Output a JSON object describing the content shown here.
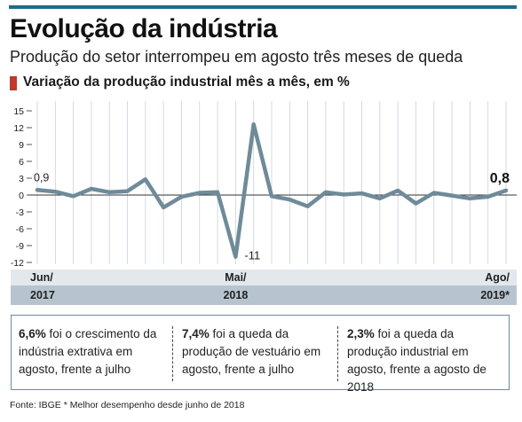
{
  "header": {
    "title": "Evolução da indústria",
    "subtitle": "Produção do setor interrompeu em agosto três meses de queda",
    "section_label": "Variação da produção industrial mês a mês, em %"
  },
  "colors": {
    "accent_bar": "#1f6b8c",
    "marker": "#c0392b",
    "line": "#6f8b99"
  },
  "chart_data": {
    "type": "line",
    "title": "Variação da produção industrial mês a mês, em %",
    "x": [
      "Jun/2017",
      "Jul/2017",
      "Ago/2017",
      "Set/2017",
      "Out/2017",
      "Nov/2017",
      "Dez/2017",
      "Jan/2018",
      "Fev/2018",
      "Mar/2018",
      "Abr/2018",
      "Mai/2018",
      "Jun/2018",
      "Jul/2018",
      "Ago/2018",
      "Set/2018",
      "Out/2018",
      "Nov/2018",
      "Dez/2018",
      "Jan/2019",
      "Fev/2019",
      "Mar/2019",
      "Abr/2019",
      "Mai/2019",
      "Jun/2019",
      "Jul/2019",
      "Ago/2019"
    ],
    "values": [
      0.9,
      0.6,
      -0.2,
      1.1,
      0.5,
      0.7,
      2.8,
      -2.2,
      -0.3,
      0.4,
      0.5,
      -11,
      12.6,
      -0.2,
      -0.8,
      -2.0,
      0.5,
      0.1,
      0.3,
      -0.6,
      0.8,
      -1.5,
      0.4,
      -0.1,
      -0.6,
      -0.3,
      0.8
    ],
    "ylim": [
      -12,
      15
    ],
    "yticks": [
      15,
      12,
      9,
      6,
      3,
      0,
      -3,
      -6,
      -9,
      -12
    ],
    "grid": true,
    "annotations": [
      {
        "x": "Jun/2017",
        "label": "0,9"
      },
      {
        "x": "Mai/2018",
        "label": "-11"
      },
      {
        "x": "Ago/2019",
        "label": "0,8"
      }
    ],
    "x_tick_labels": [
      {
        "index": 0,
        "top": "Jun/",
        "bottom": "2017"
      },
      {
        "index": 11,
        "top": "Mai/",
        "bottom": "2018"
      },
      {
        "index": 26,
        "top": "Ago/",
        "bottom": "2019*"
      }
    ]
  },
  "facts": [
    {
      "highlight": "6,6%",
      "text": " foi o crescimento da indústria extrativa em agosto, frente a julho"
    },
    {
      "highlight": "7,4%",
      "text": " foi a queda da produção de vestuário em agosto, frente a julho"
    },
    {
      "highlight": "2,3%",
      "text": " foi a queda da produção industrial  em agosto, frente a agosto de 2018"
    }
  ],
  "footer": "Fonte: IBGE * Melhor desempenho desde junho de 2018"
}
